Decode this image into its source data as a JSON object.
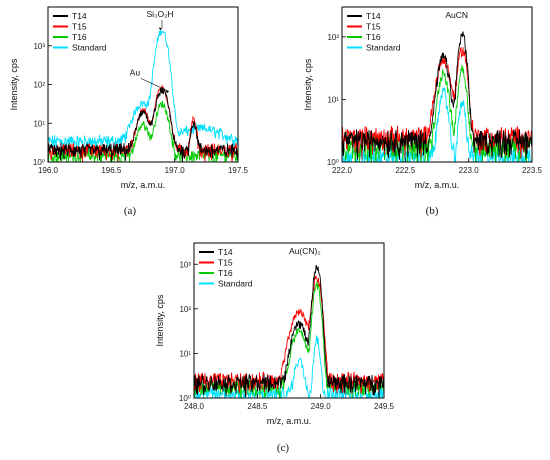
{
  "chart_data": [
    {
      "panel": "(a)",
      "type": "line",
      "xlabel": "m/z, a.m.u.",
      "ylabel": "Intensity, cps",
      "xlim": [
        196.0,
        197.5
      ],
      "ylim": [
        1,
        10000
      ],
      "yscale": "log",
      "xticks": [
        "196.0",
        "196.5",
        "197.0",
        "197.5"
      ],
      "yticks": [
        "10⁰",
        "10¹",
        "10²",
        "10³"
      ],
      "legend": [
        "T14",
        "T15",
        "T16",
        "Standard"
      ],
      "legend_position": "top-left",
      "annotations": [
        {
          "text": "Si₃O₂H",
          "x": 196.9,
          "y": 2500
        },
        {
          "text": "Au",
          "x": 196.97,
          "y": 75
        }
      ],
      "series": [
        {
          "name": "T14",
          "color": "#000000",
          "peaks": [
            {
              "x": 196.9,
              "h": 70,
              "w": 0.05
            },
            {
              "x": 196.75,
              "h": 18,
              "w": 0.05
            },
            {
              "x": 197.15,
              "h": 8,
              "w": 0.025
            }
          ],
          "baseline": 1.8
        },
        {
          "name": "T15",
          "color": "#ff0000",
          "peaks": [
            {
              "x": 196.9,
              "h": 80,
              "w": 0.05
            },
            {
              "x": 196.75,
              "h": 20,
              "w": 0.05
            },
            {
              "x": 197.15,
              "h": 10,
              "w": 0.025
            }
          ],
          "baseline": 1.8
        },
        {
          "name": "T16",
          "color": "#00cc00",
          "peaks": [
            {
              "x": 196.9,
              "h": 30,
              "w": 0.05
            },
            {
              "x": 196.75,
              "h": 8,
              "w": 0.05
            }
          ],
          "baseline": 1.3
        },
        {
          "name": "Standard",
          "color": "#00e0ff",
          "peaks": [
            {
              "x": 196.9,
              "h": 2500,
              "w": 0.045
            },
            {
              "x": 196.75,
              "h": 30,
              "w": 0.08
            },
            {
              "x": 197.2,
              "h": 4,
              "w": 0.2
            }
          ],
          "baseline": 3
        }
      ]
    },
    {
      "panel": "(b)",
      "type": "line",
      "xlabel": "m/z, a.m.u.",
      "ylabel": "Intensity, cps",
      "xlim": [
        222.0,
        223.5
      ],
      "ylim": [
        1,
        300
      ],
      "yscale": "log",
      "xticks": [
        "222.0",
        "222.5",
        "223.0",
        "223.5"
      ],
      "yticks": [
        "10⁰",
        "10¹",
        "10²"
      ],
      "legend": [
        "T14",
        "T15",
        "T16",
        "Standard"
      ],
      "legend_position": "top-left",
      "annotations": [
        {
          "text": "AuCN",
          "x": 223.0,
          "y": 170
        }
      ],
      "series": [
        {
          "name": "T14",
          "color": "#000000",
          "peaks": [
            {
              "x": 222.95,
              "h": 110,
              "w": 0.035
            },
            {
              "x": 222.8,
              "h": 45,
              "w": 0.05
            }
          ],
          "baseline": 2
        },
        {
          "name": "T15",
          "color": "#ff0000",
          "peaks": [
            {
              "x": 222.95,
              "h": 60,
              "w": 0.04
            },
            {
              "x": 222.8,
              "h": 40,
              "w": 0.06
            }
          ],
          "baseline": 2.2
        },
        {
          "name": "T16",
          "color": "#00cc00",
          "peaks": [
            {
              "x": 222.95,
              "h": 30,
              "w": 0.035
            },
            {
              "x": 222.8,
              "h": 25,
              "w": 0.045
            }
          ],
          "baseline": 1.6
        },
        {
          "name": "Standard",
          "color": "#00e0ff",
          "peaks": [
            {
              "x": 222.95,
              "h": 8,
              "w": 0.03
            },
            {
              "x": 222.8,
              "h": 12,
              "w": 0.04
            }
          ],
          "baseline": 1.1
        }
      ]
    },
    {
      "panel": "(c)",
      "type": "line",
      "xlabel": "m/z, a.m.u.",
      "ylabel": "Intensity, cps",
      "xlim": [
        248.0,
        249.5
      ],
      "ylim": [
        1,
        3000
      ],
      "yscale": "log",
      "xticks": [
        "248.0",
        "248.5",
        "249.0",
        "249.5"
      ],
      "yticks": [
        "10⁰",
        "10¹",
        "10²",
        "10³"
      ],
      "legend": [
        "T14",
        "T15",
        "T16",
        "Standard"
      ],
      "legend_position": "top-left",
      "annotations": [
        {
          "text": "Au(CN)₂",
          "x": 248.97,
          "y": 2000
        }
      ],
      "series": [
        {
          "name": "T14",
          "color": "#000000",
          "peaks": [
            {
              "x": 248.97,
              "h": 900,
              "w": 0.03
            },
            {
              "x": 248.83,
              "h": 45,
              "w": 0.06
            }
          ],
          "baseline": 2
        },
        {
          "name": "T15",
          "color": "#ff0000",
          "peaks": [
            {
              "x": 248.97,
              "h": 500,
              "w": 0.035
            },
            {
              "x": 248.83,
              "h": 80,
              "w": 0.07
            }
          ],
          "baseline": 2.2
        },
        {
          "name": "T16",
          "color": "#00cc00",
          "peaks": [
            {
              "x": 248.97,
              "h": 350,
              "w": 0.03
            },
            {
              "x": 248.83,
              "h": 30,
              "w": 0.06
            }
          ],
          "baseline": 1.6
        },
        {
          "name": "Standard",
          "color": "#00e0ff",
          "peaks": [
            {
              "x": 248.97,
              "h": 20,
              "w": 0.025
            },
            {
              "x": 248.83,
              "h": 6,
              "w": 0.04
            }
          ],
          "baseline": 1.1
        }
      ]
    }
  ]
}
